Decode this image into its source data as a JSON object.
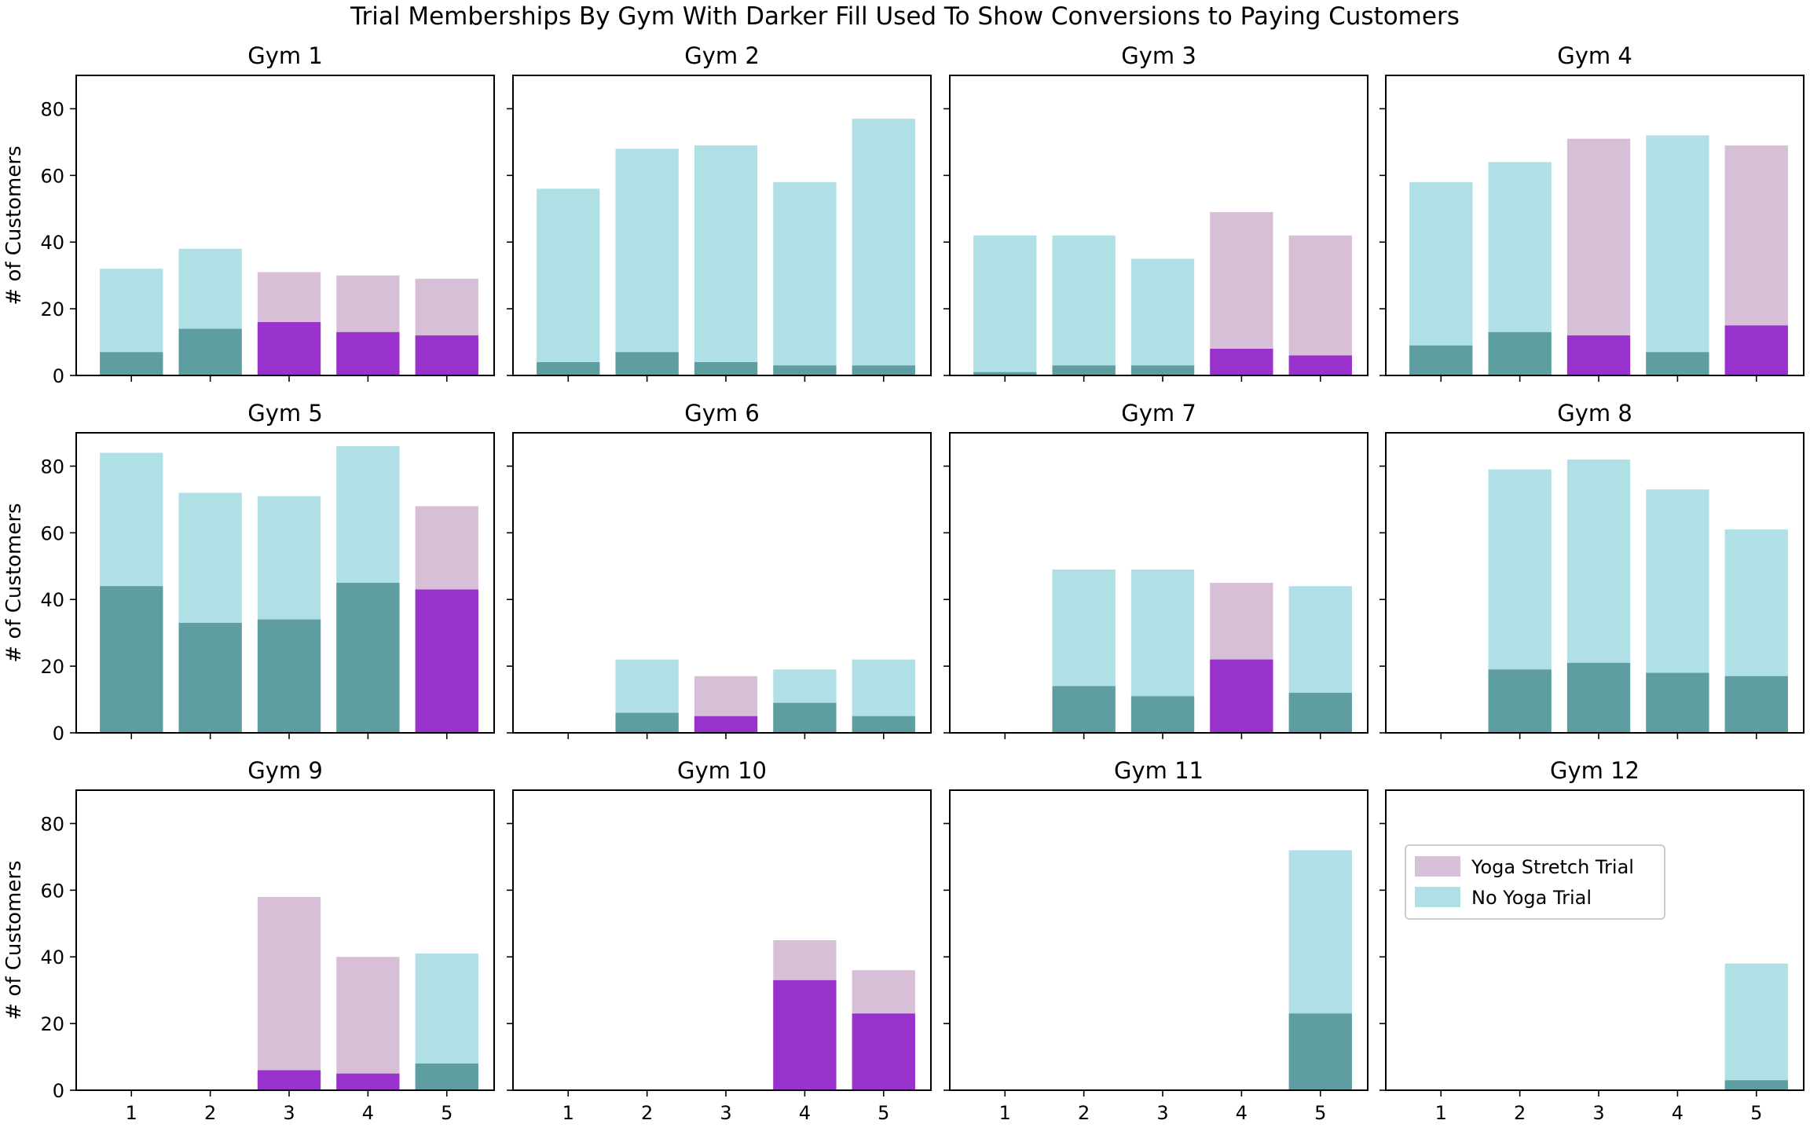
{
  "chart_data": {
    "type": "bar",
    "title": "Trial Memberships By Gym With Darker Fill Used To Show Conversions to Paying Customers",
    "ylabel": "# of Customers",
    "ylim": [
      0,
      90
    ],
    "yticks": [
      0,
      20,
      40,
      60,
      80
    ],
    "categories": [
      "1",
      "2",
      "3",
      "4",
      "5"
    ],
    "legend": {
      "placement": "upper-left of Gym 12 panel",
      "entries": [
        {
          "label": "Yoga Stretch Trial",
          "color": "#d8bfd8"
        },
        {
          "label": "No Yoga Trial",
          "color": "#b0e0e6"
        }
      ]
    },
    "colors": {
      "yoga_total": "#d8bfd8",
      "yoga_converted": "#9932cc",
      "no_yoga_total": "#b0e0e6",
      "no_yoga_converted": "#5f9ea0"
    },
    "panels": [
      {
        "title": "Gym 1",
        "bars": [
          {
            "x": "1",
            "total": 32,
            "converted": 7,
            "yoga": false
          },
          {
            "x": "2",
            "total": 38,
            "converted": 14,
            "yoga": false
          },
          {
            "x": "3",
            "total": 31,
            "converted": 16,
            "yoga": true
          },
          {
            "x": "4",
            "total": 30,
            "converted": 13,
            "yoga": true
          },
          {
            "x": "5",
            "total": 29,
            "converted": 12,
            "yoga": true
          }
        ]
      },
      {
        "title": "Gym 2",
        "bars": [
          {
            "x": "1",
            "total": 56,
            "converted": 4,
            "yoga": false
          },
          {
            "x": "2",
            "total": 68,
            "converted": 7,
            "yoga": false
          },
          {
            "x": "3",
            "total": 69,
            "converted": 4,
            "yoga": false
          },
          {
            "x": "4",
            "total": 58,
            "converted": 3,
            "yoga": false
          },
          {
            "x": "5",
            "total": 77,
            "converted": 3,
            "yoga": false
          }
        ]
      },
      {
        "title": "Gym 3",
        "bars": [
          {
            "x": "1",
            "total": 42,
            "converted": 1,
            "yoga": false
          },
          {
            "x": "2",
            "total": 42,
            "converted": 3,
            "yoga": false
          },
          {
            "x": "3",
            "total": 35,
            "converted": 3,
            "yoga": false
          },
          {
            "x": "4",
            "total": 49,
            "converted": 8,
            "yoga": true
          },
          {
            "x": "5",
            "total": 42,
            "converted": 6,
            "yoga": true
          }
        ]
      },
      {
        "title": "Gym 4",
        "bars": [
          {
            "x": "1",
            "total": 58,
            "converted": 9,
            "yoga": false
          },
          {
            "x": "2",
            "total": 64,
            "converted": 13,
            "yoga": false
          },
          {
            "x": "3",
            "total": 71,
            "converted": 12,
            "yoga": true
          },
          {
            "x": "4",
            "total": 72,
            "converted": 7,
            "yoga": false
          },
          {
            "x": "5",
            "total": 69,
            "converted": 15,
            "yoga": true
          }
        ]
      },
      {
        "title": "Gym 5",
        "bars": [
          {
            "x": "1",
            "total": 84,
            "converted": 44,
            "yoga": false
          },
          {
            "x": "2",
            "total": 72,
            "converted": 33,
            "yoga": false
          },
          {
            "x": "3",
            "total": 71,
            "converted": 34,
            "yoga": false
          },
          {
            "x": "4",
            "total": 86,
            "converted": 45,
            "yoga": false
          },
          {
            "x": "5",
            "total": 68,
            "converted": 43,
            "yoga": true
          }
        ]
      },
      {
        "title": "Gym 6",
        "bars": [
          {
            "x": "2",
            "total": 22,
            "converted": 6,
            "yoga": false
          },
          {
            "x": "3",
            "total": 17,
            "converted": 5,
            "yoga": true
          },
          {
            "x": "4",
            "total": 19,
            "converted": 9,
            "yoga": false
          },
          {
            "x": "5",
            "total": 22,
            "converted": 5,
            "yoga": false
          }
        ]
      },
      {
        "title": "Gym 7",
        "bars": [
          {
            "x": "2",
            "total": 49,
            "converted": 14,
            "yoga": false
          },
          {
            "x": "3",
            "total": 49,
            "converted": 11,
            "yoga": false
          },
          {
            "x": "4",
            "total": 45,
            "converted": 22,
            "yoga": true
          },
          {
            "x": "5",
            "total": 44,
            "converted": 12,
            "yoga": false
          }
        ]
      },
      {
        "title": "Gym 8",
        "bars": [
          {
            "x": "2",
            "total": 79,
            "converted": 19,
            "yoga": false
          },
          {
            "x": "3",
            "total": 82,
            "converted": 21,
            "yoga": false
          },
          {
            "x": "4",
            "total": 73,
            "converted": 18,
            "yoga": false
          },
          {
            "x": "5",
            "total": 61,
            "converted": 17,
            "yoga": false
          }
        ]
      },
      {
        "title": "Gym 9",
        "bars": [
          {
            "x": "3",
            "total": 58,
            "converted": 6,
            "yoga": true
          },
          {
            "x": "4",
            "total": 40,
            "converted": 5,
            "yoga": true
          },
          {
            "x": "5",
            "total": 41,
            "converted": 8,
            "yoga": false
          }
        ]
      },
      {
        "title": "Gym 10",
        "bars": [
          {
            "x": "4",
            "total": 45,
            "converted": 33,
            "yoga": true
          },
          {
            "x": "5",
            "total": 36,
            "converted": 23,
            "yoga": true
          }
        ]
      },
      {
        "title": "Gym 11",
        "bars": [
          {
            "x": "5",
            "total": 72,
            "converted": 23,
            "yoga": false
          }
        ]
      },
      {
        "title": "Gym 12",
        "bars": [
          {
            "x": "5",
            "total": 38,
            "converted": 3,
            "yoga": false
          }
        ]
      }
    ]
  }
}
